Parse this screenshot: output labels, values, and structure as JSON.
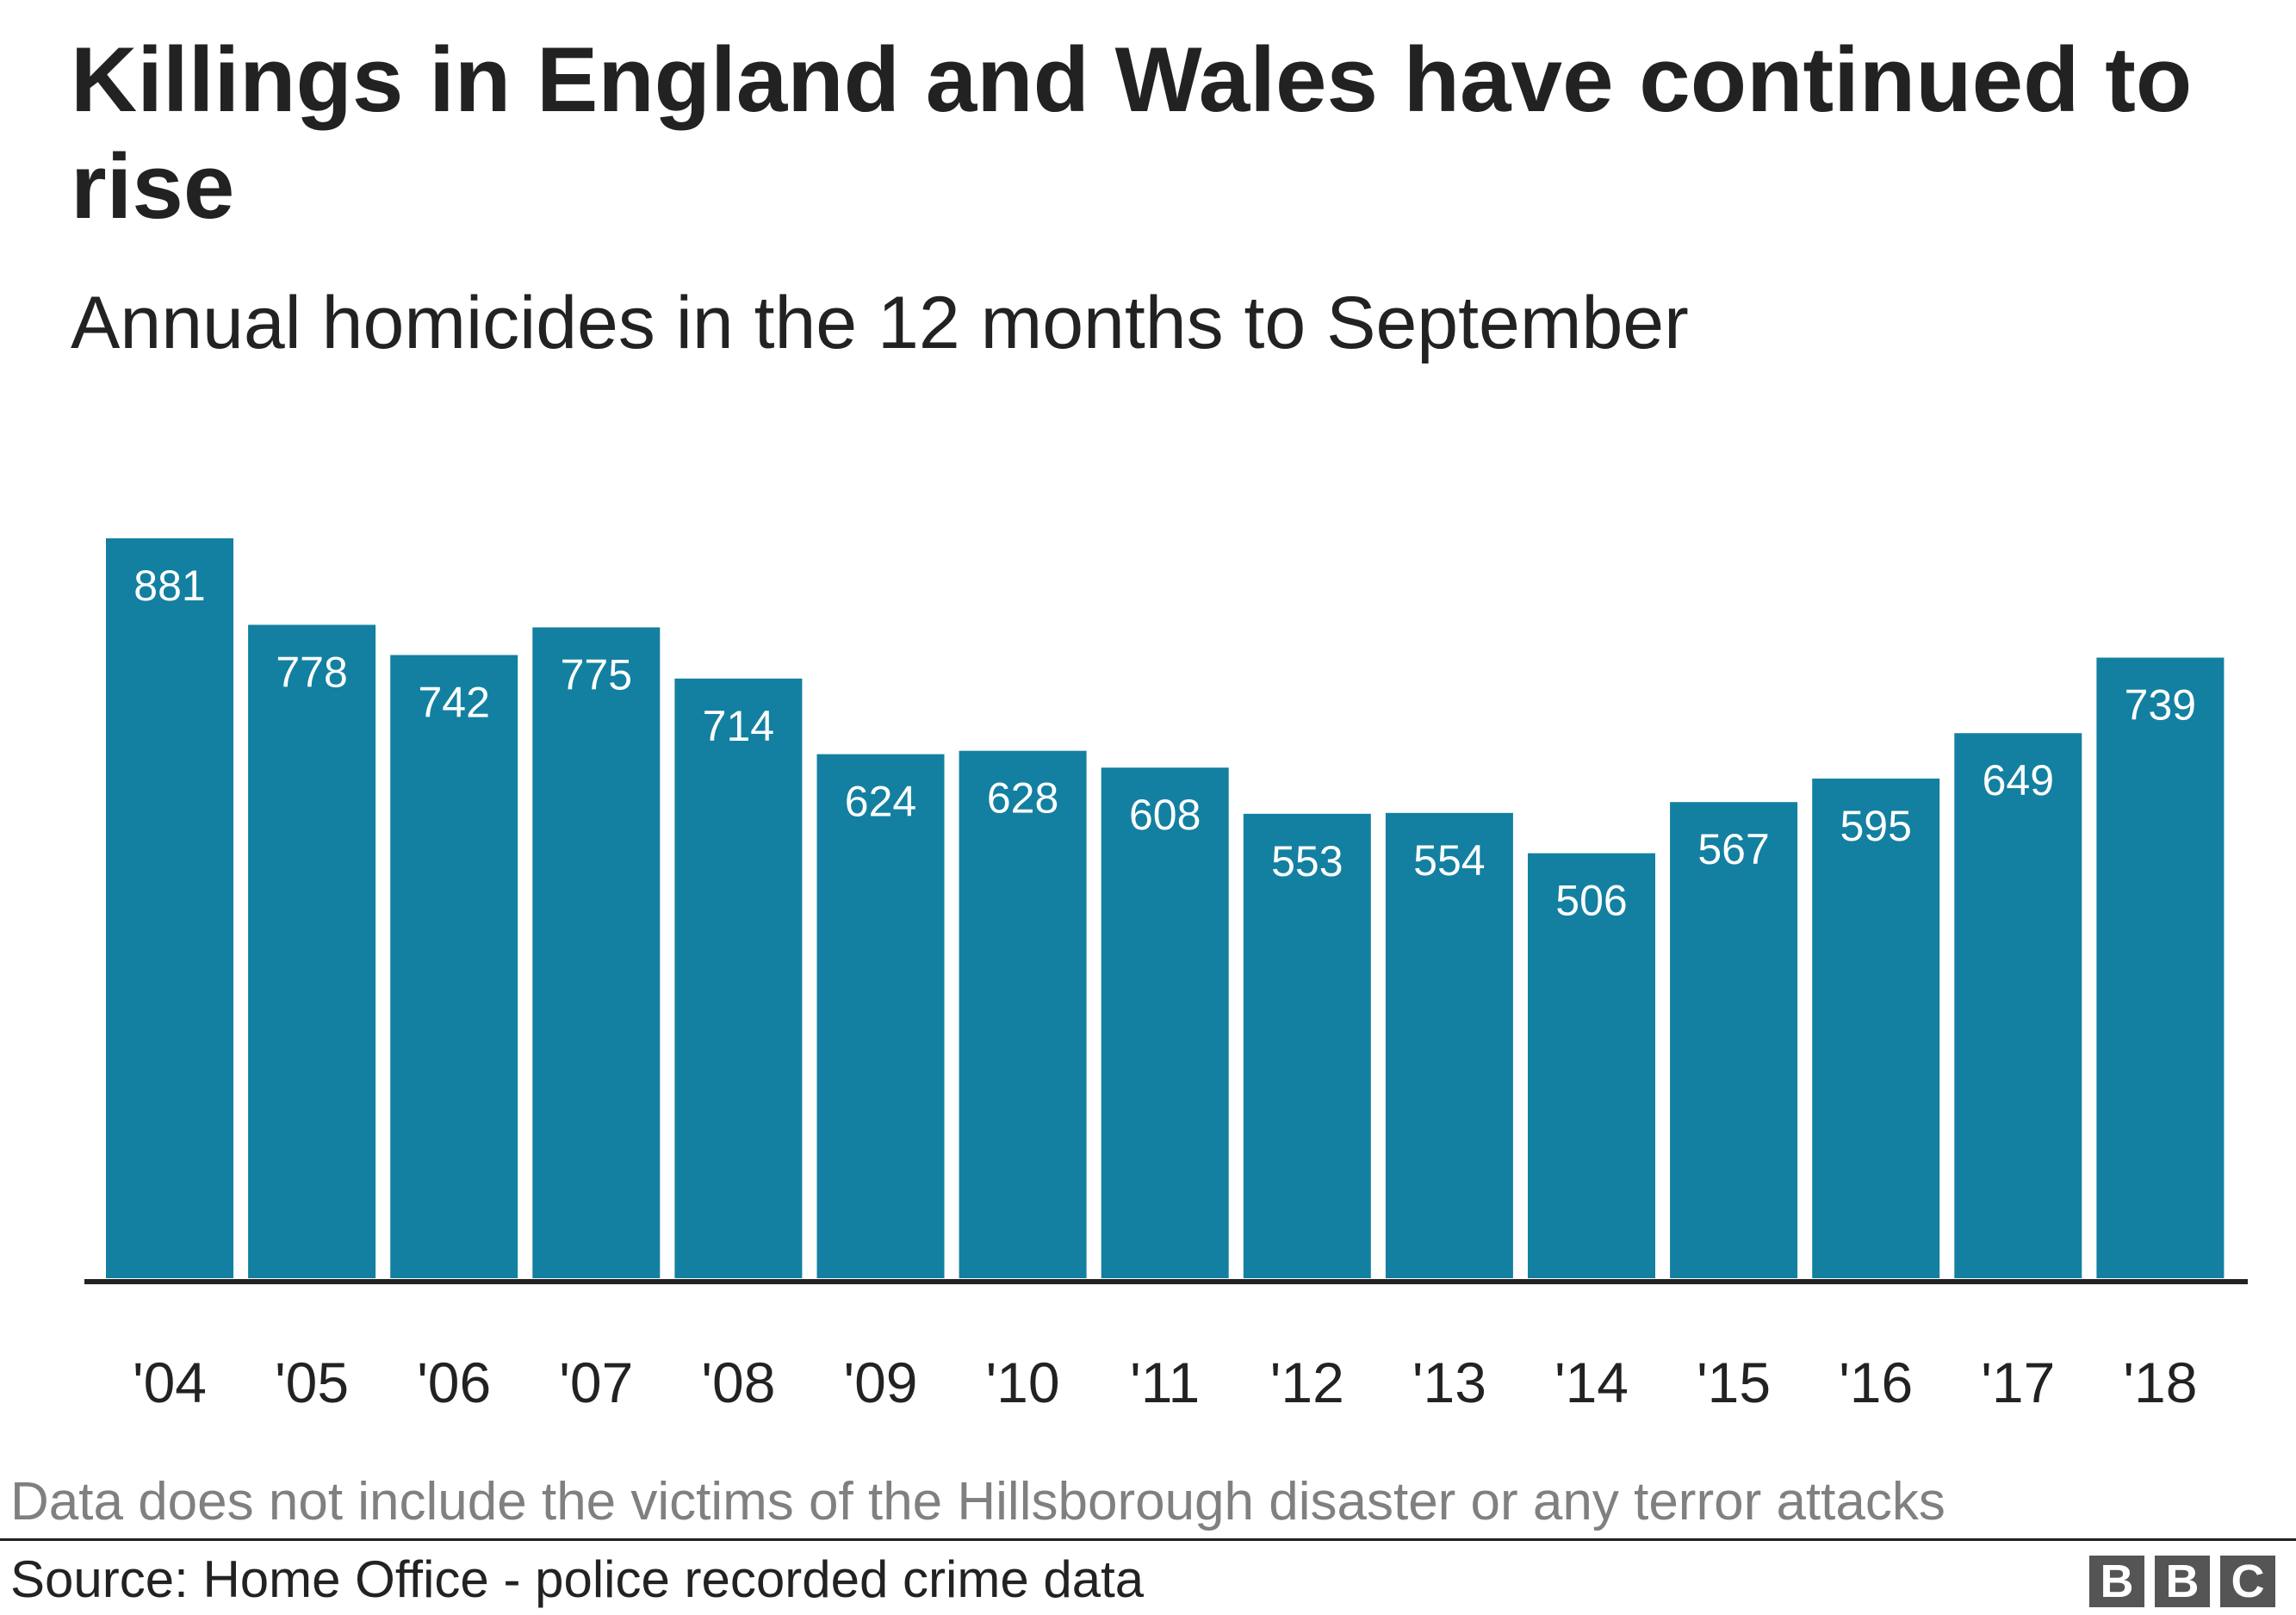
{
  "header": {
    "title": "Killings in England and Wales have continued to rise",
    "subtitle": "Annual homicides in the 12 months to September"
  },
  "footer": {
    "note": "Data does not include the victims of the Hillsborough disaster or any terror attacks",
    "source": "Source: Home Office - police recorded crime data",
    "logo_letters": [
      "B",
      "B",
      "C"
    ]
  },
  "colors": {
    "bar": "#1380a1",
    "bar_label": "#ffffff",
    "axis": "#222222",
    "text": "#222222",
    "note": "#808080"
  },
  "chart_data": {
    "type": "bar",
    "title": "Killings in England and Wales have continued to rise",
    "subtitle": "Annual homicides in the 12 months to September",
    "categories": [
      "'04",
      "'05",
      "'06",
      "'07",
      "'08",
      "'09",
      "'10",
      "'11",
      "'12",
      "'13",
      "'14",
      "'15",
      "'16",
      "'17",
      "'18"
    ],
    "values": [
      881,
      778,
      742,
      775,
      714,
      624,
      628,
      608,
      553,
      554,
      506,
      567,
      595,
      649,
      739
    ],
    "xlabel": "",
    "ylabel": "",
    "ylim": [
      0,
      881
    ],
    "grid": false,
    "legend": "none",
    "data_labels": "inside-top"
  }
}
